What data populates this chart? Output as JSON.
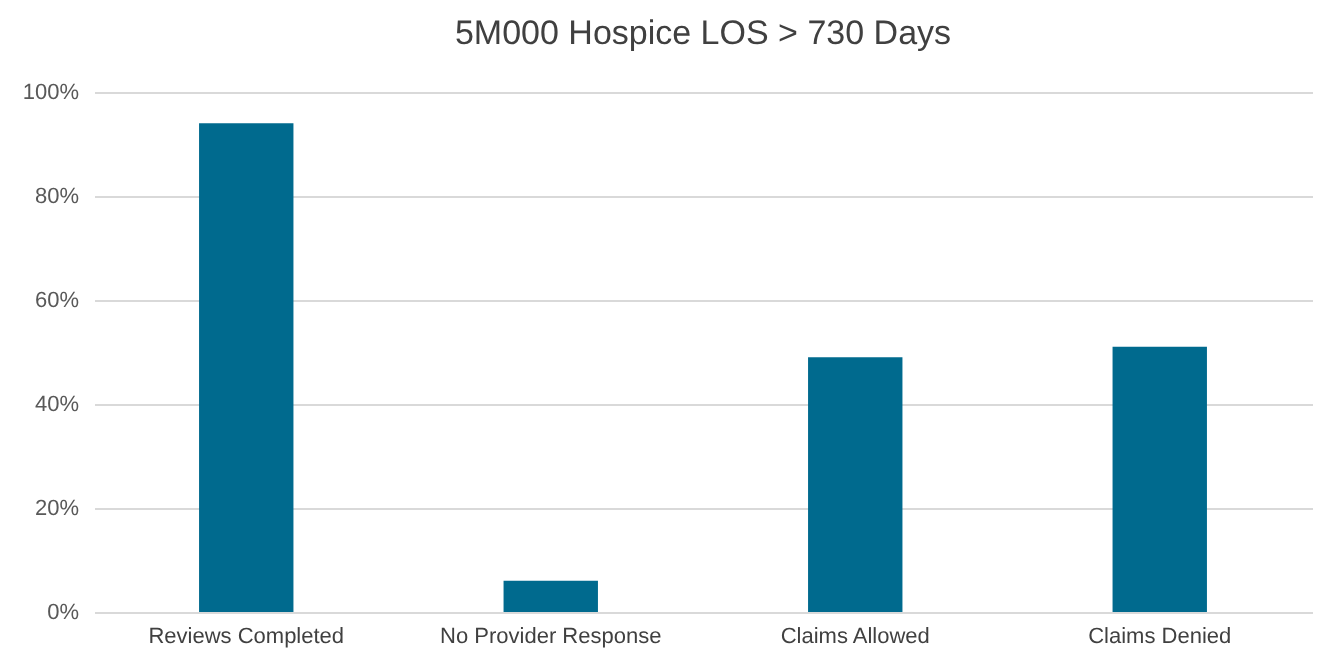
{
  "chart_data": {
    "type": "bar",
    "title": "5M000 Hospice LOS > 730 Days",
    "categories": [
      "Reviews Completed",
      "No Provider Response",
      "Claims Allowed",
      "Claims Denied"
    ],
    "values": [
      94,
      6,
      49,
      51
    ],
    "color": "#006a8e",
    "ylim": [
      0,
      100
    ],
    "yticks": [
      {
        "value": 0,
        "label": "0%"
      },
      {
        "value": 20,
        "label": "20%"
      },
      {
        "value": 40,
        "label": "40%"
      },
      {
        "value": 60,
        "label": "60%"
      },
      {
        "value": 80,
        "label": "80%"
      },
      {
        "value": 100,
        "label": "100%"
      }
    ],
    "grid": "y"
  }
}
